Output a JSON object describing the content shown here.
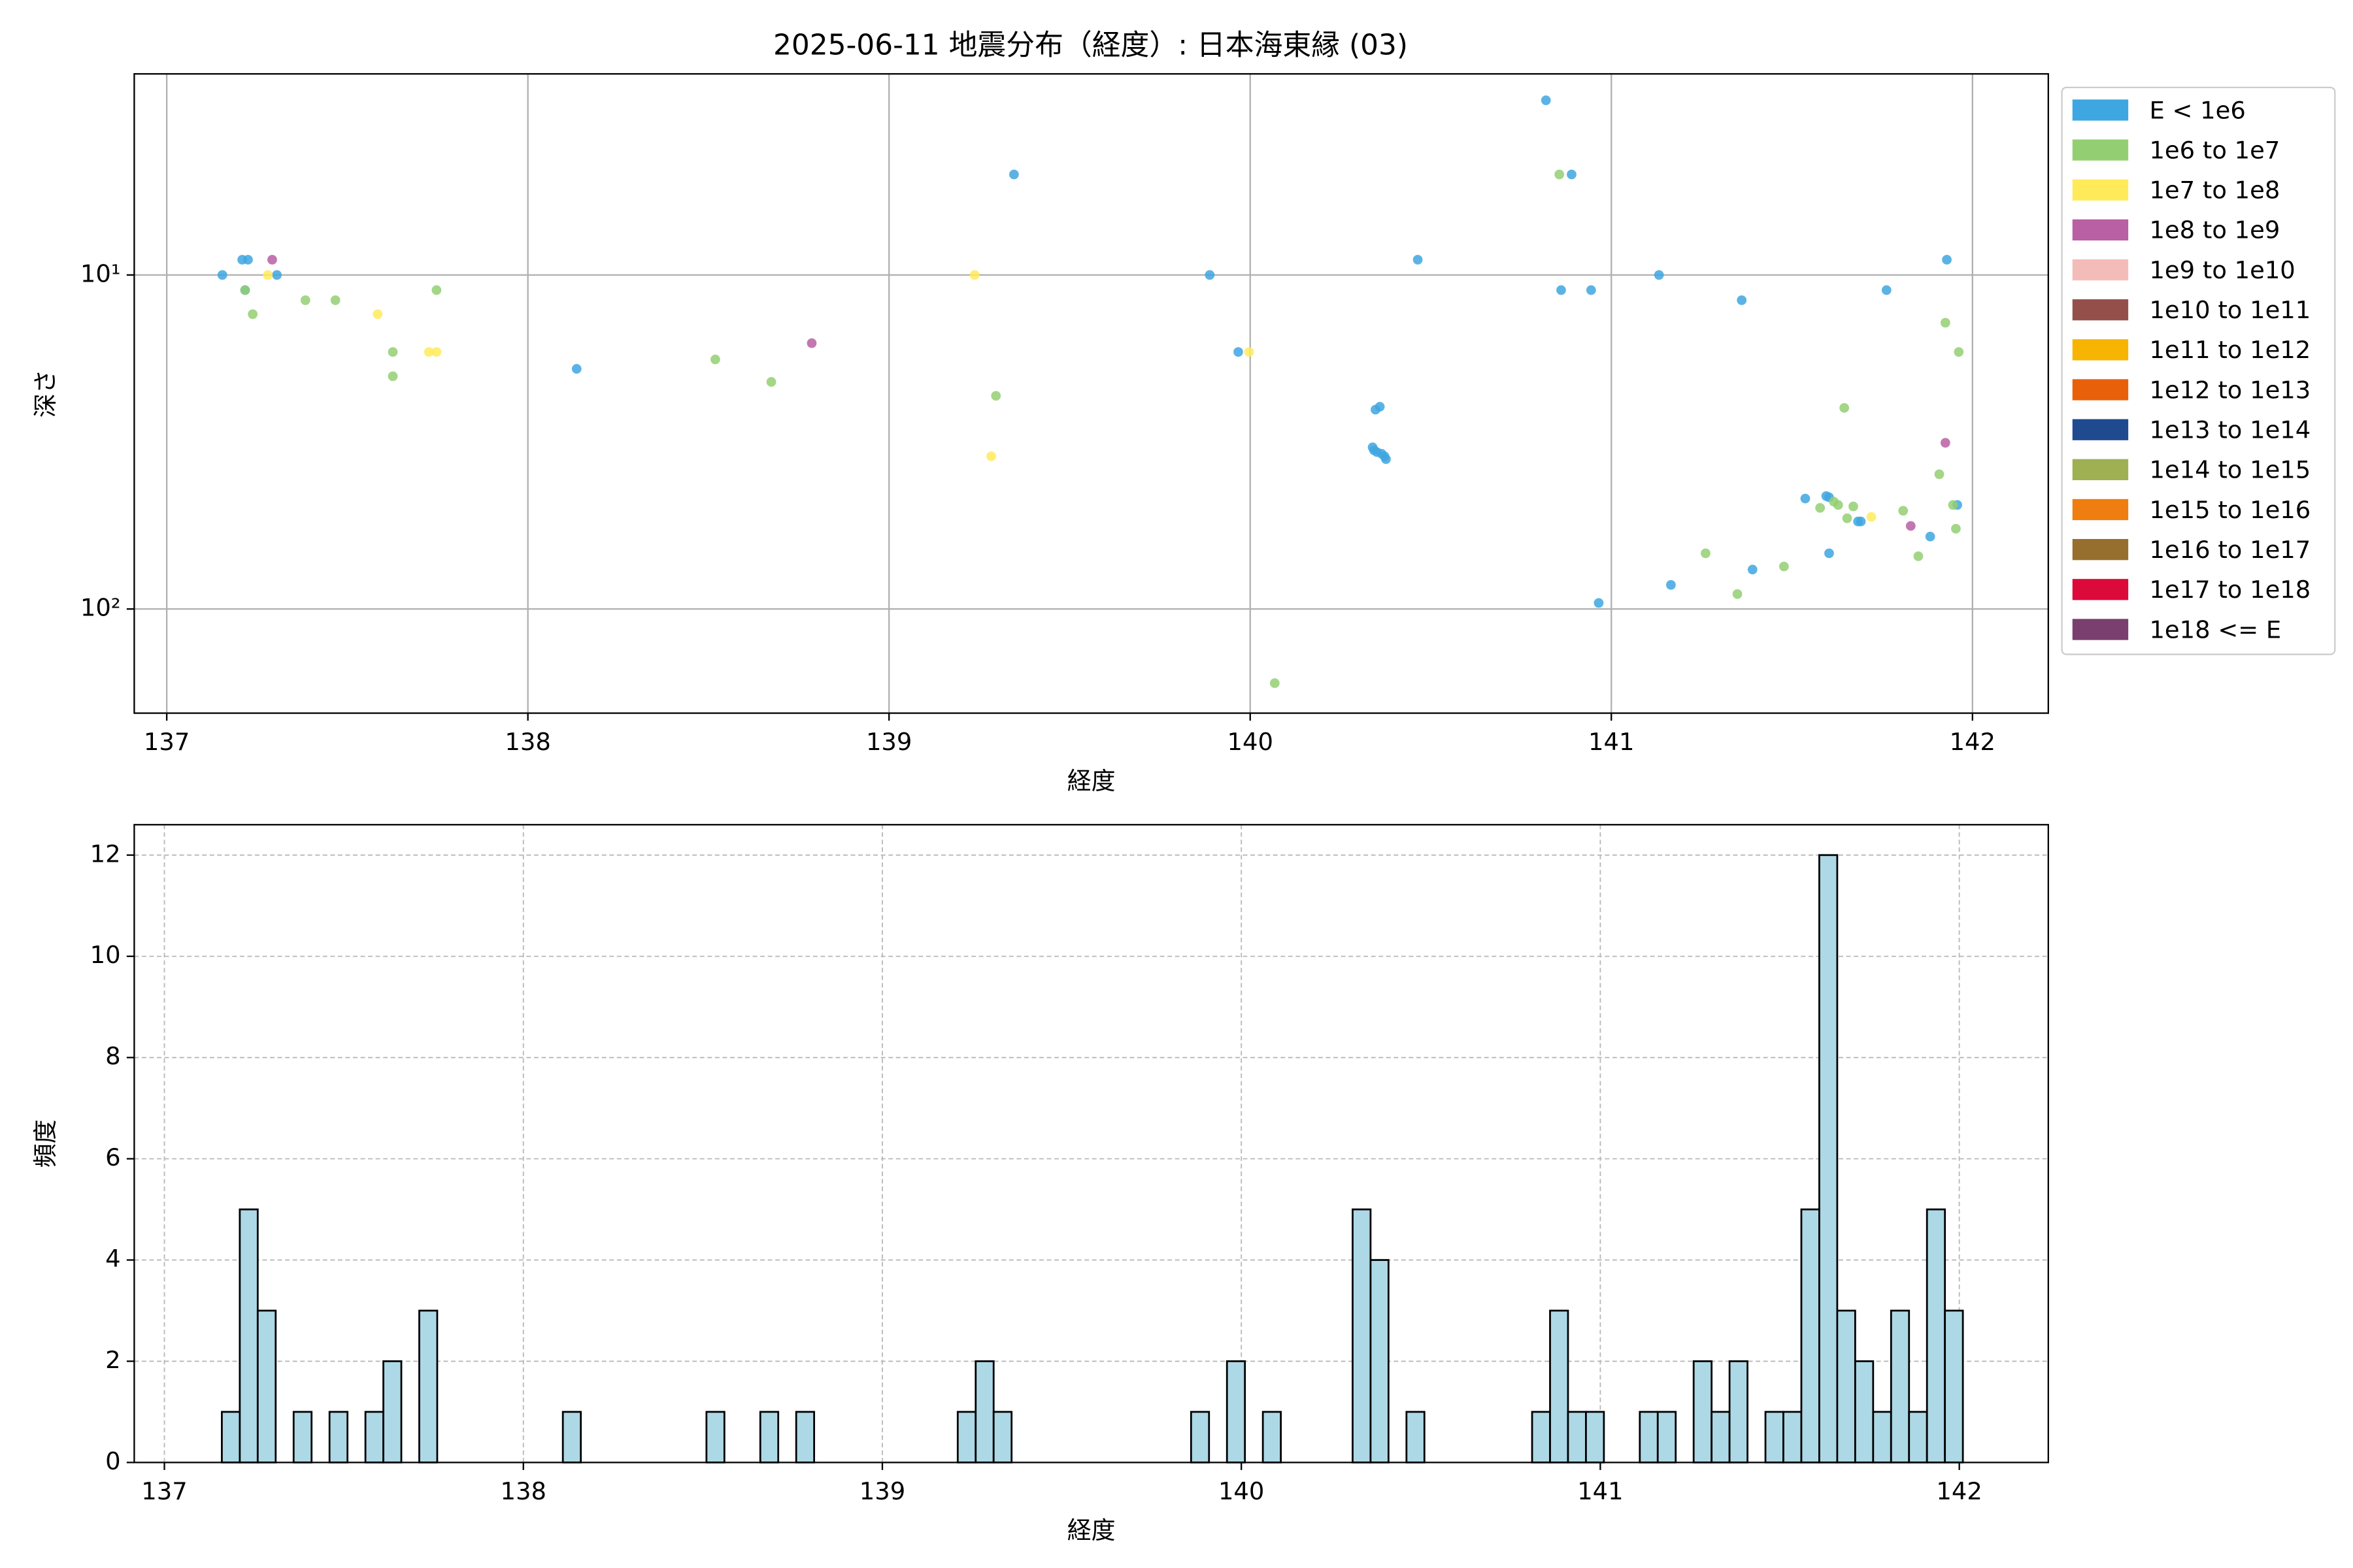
{
  "chart_data": [
    {
      "type": "scatter",
      "title": "2025-06-11 地震分布（経度）: 日本海東縁 (03)",
      "xlabel": "経度",
      "ylabel": "深さ",
      "xlim": [
        136.91,
        142.21
      ],
      "xticks": [
        137,
        138,
        139,
        140,
        141,
        142
      ],
      "ylim": [
        205,
        2.5
      ],
      "yscale": "log",
      "yticks": [
        {
          "value": 10,
          "label": "10¹"
        },
        {
          "value": 100,
          "label": "10²"
        }
      ],
      "grid": true,
      "legend": "outside-right",
      "series": [
        {
          "name": "E < 1e6",
          "color": "#3ea6e0",
          "x": [
            137.154,
            137.209,
            137.225,
            137.217,
            137.305,
            138.135,
            139.346,
            139.888,
            139.967,
            140.464,
            140.819,
            140.89,
            140.861,
            140.944,
            140.965,
            141.132,
            141.165,
            141.361,
            141.391,
            141.929,
            141.762,
            140.347,
            140.359,
            140.339,
            140.343,
            140.351,
            140.364,
            140.372,
            140.376,
            141.537,
            141.595,
            141.603,
            141.683,
            141.691,
            141.603,
            141.883,
            141.958
          ],
          "values": [
            10.0,
            9.0,
            9.0,
            11.1,
            10.0,
            19.1,
            5.0,
            10.0,
            17.0,
            9.0,
            3.0,
            5.0,
            11.1,
            11.1,
            95.9,
            10.0,
            84.7,
            11.9,
            76.2,
            9.0,
            11.1,
            25.3,
            24.8,
            32.8,
            33.5,
            33.9,
            34.3,
            34.9,
            35.6,
            46.7,
            45.9,
            46.3,
            54.7,
            54.7,
            68.1,
            60.7,
            48.8
          ]
        },
        {
          "name": "1e6 to 1e7",
          "color": "#93cf72",
          "x": [
            137.217,
            137.238,
            137.384,
            137.467,
            137.747,
            137.626,
            137.626,
            138.519,
            138.674,
            139.296,
            140.068,
            140.856,
            141.261,
            141.349,
            141.478,
            141.645,
            141.925,
            141.962,
            141.908,
            141.954,
            141.808,
            141.85,
            141.578,
            141.616,
            141.628,
            141.653,
            141.67,
            141.946
          ],
          "values": [
            11.1,
            13.1,
            11.9,
            11.9,
            11.1,
            17.0,
            20.1,
            17.9,
            20.9,
            23.0,
            166.7,
            5.0,
            68.1,
            90.2,
            74.6,
            25.0,
            13.9,
            17.0,
            39.5,
            57.5,
            50.8,
            69.5,
            49.8,
            47.7,
            48.8,
            53.5,
            49.3,
            48.8
          ]
        },
        {
          "name": "1e7 to 1e8",
          "color": "#ffeb5a",
          "x": [
            137.28,
            137.584,
            137.726,
            137.747,
            139.237,
            139.283,
            139.997,
            141.72
          ],
          "values": [
            10.0,
            13.1,
            17.0,
            17.0,
            10.0,
            34.9,
            17.0,
            53.0
          ]
        },
        {
          "name": "1e8 to 1e9",
          "color": "#b95fa3",
          "x": [
            137.292,
            138.786,
            141.829,
            141.925
          ],
          "values": [
            9.0,
            16.0,
            56.4,
            31.8
          ]
        },
        {
          "name": "1e9 to 1e10",
          "color": "#f4bcb8",
          "x": [],
          "values": []
        },
        {
          "name": "1e10 to 1e11",
          "color": "#954f4a",
          "x": [],
          "values": []
        },
        {
          "name": "1e11 to 1e12",
          "color": "#f7b400",
          "x": [],
          "values": []
        },
        {
          "name": "1e12 to 1e13",
          "color": "#e8600a",
          "x": [],
          "values": []
        },
        {
          "name": "1e13 to 1e14",
          "color": "#1f4a8f",
          "x": [],
          "values": []
        },
        {
          "name": "1e14 to 1e15",
          "color": "#9eb052",
          "x": [],
          "values": []
        },
        {
          "name": "1e15 to 1e16",
          "color": "#f07d0f",
          "x": [],
          "values": []
        },
        {
          "name": "1e16 to 1e17",
          "color": "#966f2f",
          "x": [],
          "values": []
        },
        {
          "name": "1e17 to 1e18",
          "color": "#dc0a3a",
          "x": [],
          "values": []
        },
        {
          "name": "1e18 <= E",
          "color": "#7a3f6e",
          "x": [],
          "values": []
        }
      ]
    },
    {
      "type": "histogram",
      "xlabel": "経度",
      "ylabel": "頻度",
      "xlim": [
        136.916,
        142.248
      ],
      "xticks": [
        137,
        138,
        139,
        140,
        141,
        142
      ],
      "ylim": [
        0,
        12.6
      ],
      "yticks": [
        0,
        2,
        4,
        6,
        8,
        10,
        12
      ],
      "grid": "dashed",
      "color": "#add8e6",
      "edgecolor": "#000000",
      "bins": [
        137.16,
        137.21,
        137.26,
        137.31,
        137.36,
        137.41,
        137.46,
        137.51,
        137.56,
        137.61,
        137.66,
        137.71,
        137.76,
        137.81,
        137.86,
        137.91,
        137.96,
        138.01,
        138.06,
        138.11,
        138.16,
        138.21,
        138.26,
        138.31,
        138.36,
        138.41,
        138.46,
        138.51,
        138.56,
        138.61,
        138.66,
        138.71,
        138.76,
        138.81,
        138.86,
        138.91,
        138.96,
        139.01,
        139.06,
        139.11,
        139.16,
        139.21,
        139.26,
        139.31,
        139.36,
        139.41,
        139.46,
        139.51,
        139.56,
        139.61,
        139.66,
        139.71,
        139.76,
        139.81,
        139.86,
        139.91,
        139.96,
        140.01,
        140.06,
        140.11,
        140.16,
        140.21,
        140.26,
        140.31,
        140.36,
        140.41,
        140.46,
        140.51,
        140.56,
        140.61,
        140.66,
        140.71,
        140.76,
        140.81,
        140.86,
        140.91,
        140.96,
        141.01,
        141.06,
        141.11,
        141.16,
        141.21,
        141.26,
        141.31,
        141.36,
        141.41,
        141.46,
        141.51,
        141.56,
        141.61,
        141.66,
        141.71,
        141.76,
        141.81,
        141.86,
        141.91,
        141.96,
        142.01
      ],
      "values": [
        1,
        5,
        3,
        0,
        1,
        0,
        1,
        0,
        1,
        2,
        0,
        3,
        0,
        0,
        0,
        0,
        0,
        0,
        0,
        1,
        0,
        0,
        0,
        0,
        0,
        0,
        0,
        1,
        0,
        0,
        1,
        0,
        1,
        0,
        0,
        0,
        0,
        0,
        0,
        0,
        0,
        1,
        2,
        1,
        0,
        0,
        0,
        0,
        0,
        0,
        0,
        0,
        0,
        0,
        1,
        0,
        2,
        0,
        1,
        0,
        0,
        0,
        0,
        5,
        4,
        0,
        1,
        0,
        0,
        0,
        0,
        0,
        0,
        1,
        3,
        1,
        1,
        0,
        0,
        1,
        1,
        0,
        2,
        1,
        2,
        0,
        1,
        1,
        5,
        12,
        3,
        2,
        1,
        3,
        1,
        5,
        3
      ]
    }
  ]
}
